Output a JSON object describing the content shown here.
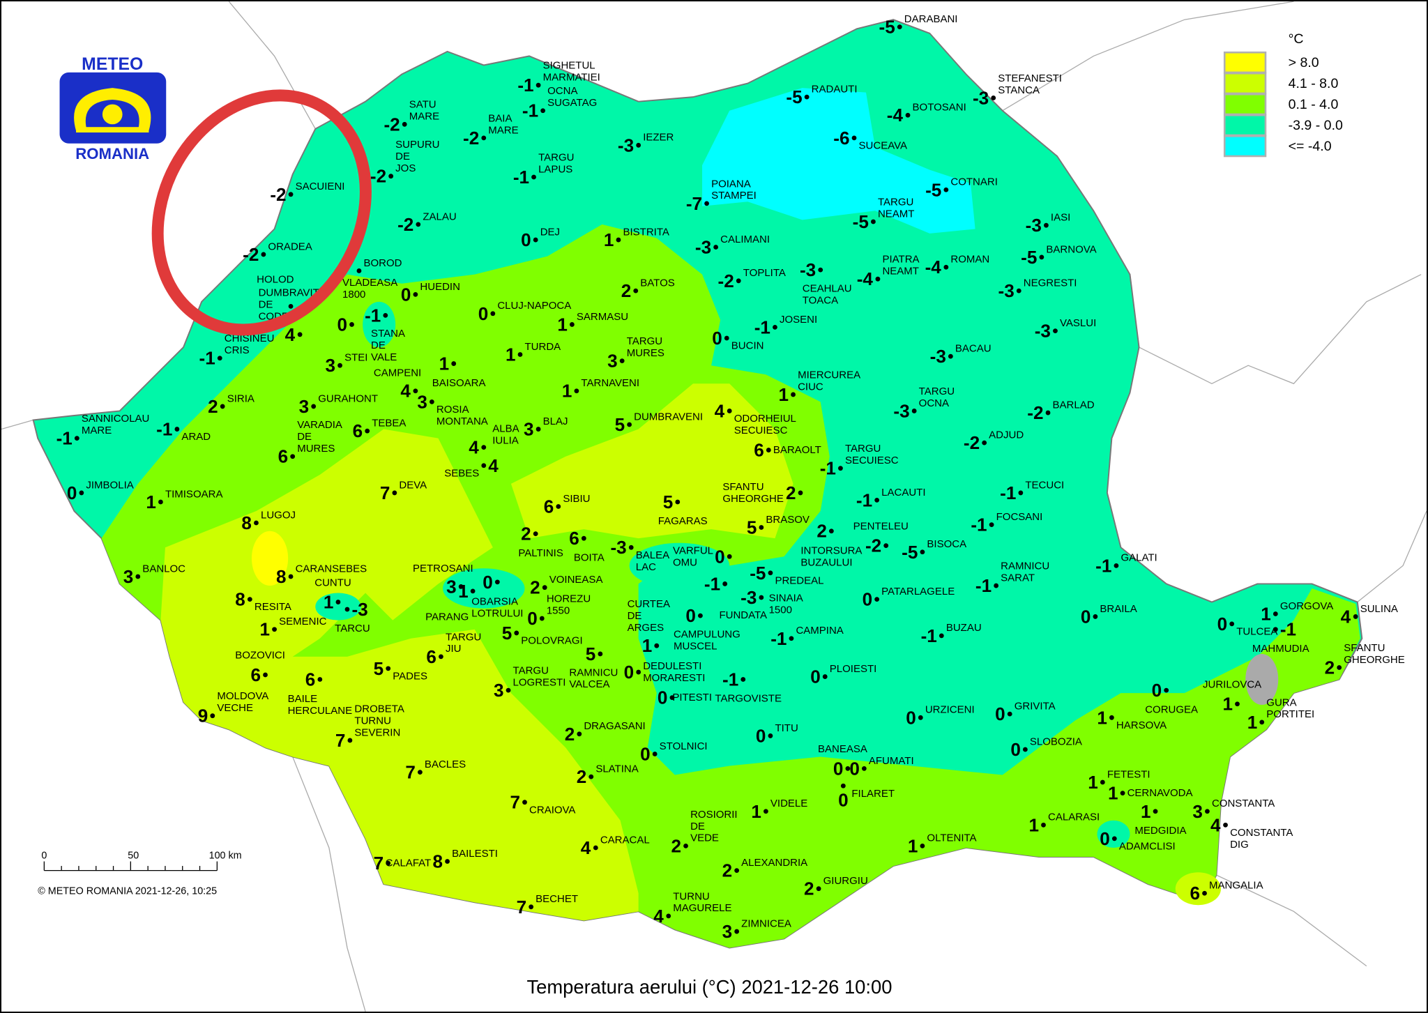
{
  "logo": {
    "top": "METEO",
    "bottom": "ROMANIA"
  },
  "title": "Temperatura aerului (°C) 2021-12-26 10:00",
  "copyright": "© METEO ROMANIA 2021-12-26, 10:25",
  "scale_bar": {
    "ticks": [
      "0",
      "50",
      "100 km"
    ]
  },
  "legend": {
    "unit": "°C",
    "classes": [
      {
        "label": "> 8.0",
        "color": "#ffff00"
      },
      {
        "label": "4.1 - 8.0",
        "color": "#ccff00"
      },
      {
        "label": "0.1 - 4.0",
        "color": "#80ff00"
      },
      {
        "label": "-3.9 - 0.0",
        "color": "#00f7a8"
      },
      {
        "label": "<= -4.0",
        "color": "#00ffff"
      }
    ]
  },
  "annotation": {
    "type": "red-circle",
    "color": "#e03a3a"
  },
  "stations": [
    {
      "name": "DARABANI",
      "value": "-5"
    },
    {
      "name": "RADAUTI",
      "value": "-5"
    },
    {
      "name": "BOTOSANI",
      "value": "-4"
    },
    {
      "name": "STEFANESTI\nSTANCA",
      "value": "-3"
    },
    {
      "name": "SUCEAVA",
      "value": "-6"
    },
    {
      "name": "COTNARI",
      "value": "-5"
    },
    {
      "name": "IASI",
      "value": "-3"
    },
    {
      "name": "BARNOVA",
      "value": "-5"
    },
    {
      "name": "POIANA\nSTAMPEI",
      "value": "-7"
    },
    {
      "name": "TARGU\nNEAMT",
      "value": "-5"
    },
    {
      "name": "PIATRA\nNEAMT",
      "value": "-4"
    },
    {
      "name": "ROMAN",
      "value": "-4"
    },
    {
      "name": "NEGRESTI",
      "value": "-3"
    },
    {
      "name": "VASLUI",
      "value": "-3"
    },
    {
      "name": "CALIMANI",
      "value": "-3"
    },
    {
      "name": "TOPLITA",
      "value": "-2"
    },
    {
      "name": "CEAHLAU\nTOACA",
      "value": "-3"
    },
    {
      "name": "BACAU",
      "value": "-3"
    },
    {
      "name": "TARGU\nOCNA",
      "value": "-3"
    },
    {
      "name": "BARLAD",
      "value": "-2"
    },
    {
      "name": "ADJUD",
      "value": "-2"
    },
    {
      "name": "JOSENI",
      "value": "-1"
    },
    {
      "name": "BUCIN",
      "value": "0"
    },
    {
      "name": "MIERCUREA\nCIUC",
      "value": "1"
    },
    {
      "name": "ODORHEIUL\nSECUIESC",
      "value": "4"
    },
    {
      "name": "BARAOLT",
      "value": "6"
    },
    {
      "name": "TARGU\nSECUIESC",
      "value": "-1"
    },
    {
      "name": "SFANTU\nGHEORGHE",
      "value": "2"
    },
    {
      "name": "LACAUTI",
      "value": "-1"
    },
    {
      "name": "TECUCI",
      "value": "-1"
    },
    {
      "name": "FOCSANI",
      "value": "-1"
    },
    {
      "name": "INTORSURA\nBUZAULUI",
      "value": "2"
    },
    {
      "name": "PENTELEU",
      "value": "-2"
    },
    {
      "name": "BISOCA",
      "value": "-5"
    },
    {
      "name": "RAMNICU\nSARAT",
      "value": "-1"
    },
    {
      "name": "GALATI",
      "value": "-1"
    },
    {
      "name": "BRASOV",
      "value": "5"
    },
    {
      "name": "FAGARAS",
      "value": "5"
    },
    {
      "name": "VARFUL\nOMU",
      "value": "0"
    },
    {
      "name": "PREDEAL",
      "value": "-5"
    },
    {
      "name": "FUNDATA",
      "value": "-1"
    },
    {
      "name": "SINAIA\n1500",
      "value": "-3"
    },
    {
      "name": "PATARLAGELE",
      "value": "0"
    },
    {
      "name": "BUZAU",
      "value": "-1"
    },
    {
      "name": "BRAILA",
      "value": "0"
    },
    {
      "name": "TULCEA",
      "value": "0"
    },
    {
      "name": "GORGOVA",
      "value": "1"
    },
    {
      "name": "SULINA",
      "value": "4"
    },
    {
      "name": "MAHMUDIA",
      "value": "-1"
    },
    {
      "name": "SFANTU\nGHEORGHE",
      "value": "2"
    },
    {
      "name": "GURA\nPORTITEI",
      "value": "1"
    },
    {
      "name": "JURILOVCA",
      "value": "1"
    },
    {
      "name": "CORUGEA",
      "value": "0"
    },
    {
      "name": "HARSOVA",
      "value": "1"
    },
    {
      "name": "CAMPULUNG\nMUSCEL",
      "value": "0"
    },
    {
      "name": "CURTEA\nDE\nARGES",
      "value": "1"
    },
    {
      "name": "CAMPINA",
      "value": "-1"
    },
    {
      "name": "PLOIESTI",
      "value": "0"
    },
    {
      "name": "TARGOVISTE",
      "value": "-1"
    },
    {
      "name": "PITESTI",
      "value": "0"
    },
    {
      "name": "URZICENI",
      "value": "0"
    },
    {
      "name": "GRIVITA",
      "value": "0"
    },
    {
      "name": "SLOBOZIA",
      "value": "0"
    },
    {
      "name": "TITU",
      "value": "0"
    },
    {
      "name": "STOLNICI",
      "value": "0"
    },
    {
      "name": "BANEASA",
      "value": "0"
    },
    {
      "name": "AFUMATI",
      "value": "0"
    },
    {
      "name": "FILARET",
      "value": "0"
    },
    {
      "name": "FETESTI",
      "value": "1"
    },
    {
      "name": "CERNAVODA",
      "value": "1"
    },
    {
      "name": "MEDGIDIA",
      "value": "1"
    },
    {
      "name": "CONSTANTA",
      "value": "3"
    },
    {
      "name": "CONSTANTA\nDIG",
      "value": "4"
    },
    {
      "name": "CALARASI",
      "value": "1"
    },
    {
      "name": "ADAMCLISI",
      "value": "0"
    },
    {
      "name": "OLTENITA",
      "value": "1"
    },
    {
      "name": "MANGALIA",
      "value": "6"
    },
    {
      "name": "GIURGIU",
      "value": "2"
    },
    {
      "name": "ZIMNICEA",
      "value": "3"
    },
    {
      "name": "TURNU\nMAGURELE",
      "value": "4"
    },
    {
      "name": "ALEXANDRIA",
      "value": "2"
    },
    {
      "name": "ROSIORII\nDE\nVEDE",
      "value": "2"
    },
    {
      "name": "VIDELE",
      "value": "1"
    },
    {
      "name": "CARACAL",
      "value": "4"
    },
    {
      "name": "BECHET",
      "value": "7"
    },
    {
      "name": "CRAIOVA",
      "value": "7"
    },
    {
      "name": "SLATINA",
      "value": "2"
    },
    {
      "name": "DRAGASANI",
      "value": "2"
    },
    {
      "name": "BAILESTI",
      "value": "8"
    },
    {
      "name": "CALAFAT",
      "value": "7"
    },
    {
      "name": "BACLES",
      "value": "7"
    },
    {
      "name": "DROBETA\nTURNU\nSEVERIN",
      "value": "7"
    },
    {
      "name": "MOLDOVA\nVECHE",
      "value": "9"
    },
    {
      "name": "BOZOVICI",
      "value": "6"
    },
    {
      "name": "BAILE\nHERCULANE",
      "value": "6"
    },
    {
      "name": "PADES",
      "value": "5"
    },
    {
      "name": "TARGU\nJIU",
      "value": "6"
    },
    {
      "name": "POLOVRAGI",
      "value": "5"
    },
    {
      "name": "TARGU\nLOGRESTI",
      "value": "3"
    },
    {
      "name": "RAMNICU\nVALCEA",
      "value": "5"
    },
    {
      "name": "DEDULESTI\nMORARESTI",
      "value": "0"
    },
    {
      "name": "HOREZU\n1550",
      "value": "0"
    },
    {
      "name": "VOINEASA",
      "value": "2"
    },
    {
      "name": "OBARSIA\nLOTRULUI",
      "value": "0"
    },
    {
      "name": "PETROSANI",
      "value": "3"
    },
    {
      "name": "PARANG",
      "value": "1"
    },
    {
      "name": "CUNTU",
      "value": "1"
    },
    {
      "name": "TARCU",
      "value": "-3"
    },
    {
      "name": "SEMENIC",
      "value": "1"
    },
    {
      "name": "RESITA",
      "value": "8"
    },
    {
      "name": "CARANSEBES",
      "value": "8"
    },
    {
      "name": "LUGOJ",
      "value": "8"
    },
    {
      "name": "BANLOC",
      "value": "3"
    },
    {
      "name": "TIMISOARA",
      "value": "1"
    },
    {
      "name": "JIMBOLIA",
      "value": "0"
    },
    {
      "name": "SANNICOLAU\nMARE",
      "value": "-1"
    },
    {
      "name": "ARAD",
      "value": "-1"
    },
    {
      "name": "SIRIA",
      "value": "2"
    },
    {
      "name": "GURAHONT",
      "value": "3"
    },
    {
      "name": "CHISINEU\nCRIS",
      "value": "-1"
    },
    {
      "name": "VARADIA\nDE\nMURES",
      "value": "6"
    },
    {
      "name": "TEBEA",
      "value": "6"
    },
    {
      "name": "DEVA",
      "value": "7"
    },
    {
      "name": "DUMBRAVITA\nDE\nCODRU",
      "value": "4"
    },
    {
      "name": "STEI",
      "value": "3"
    },
    {
      "name": "STANA\nDE\nVALE",
      "value": "0"
    },
    {
      "name": "VLADEASA\n1800",
      "value": "-1"
    },
    {
      "name": "BOROD",
      "value": ""
    },
    {
      "name": "HOLOD",
      "value": ""
    },
    {
      "name": "HUEDIN",
      "value": "0"
    },
    {
      "name": "ORADEA",
      "value": "-2"
    },
    {
      "name": "SACUIENI",
      "value": "-2"
    },
    {
      "name": "SATU\nMARE",
      "value": "-2"
    },
    {
      "name": "SUPURU\nDE\nJOS",
      "value": "-2"
    },
    {
      "name": "ZALAU",
      "value": "-2"
    },
    {
      "name": "SIGHETUL\nMARMATIEI",
      "value": "-1"
    },
    {
      "name": "BAIA\nMARE",
      "value": "-2"
    },
    {
      "name": "OCNA\nSUGATAG",
      "value": "-1"
    },
    {
      "name": "IEZER",
      "value": "-3"
    },
    {
      "name": "TARGU\nLAPUS",
      "value": "-1"
    },
    {
      "name": "DEJ",
      "value": "0"
    },
    {
      "name": "BISTRITA",
      "value": "1"
    },
    {
      "name": "CLUJ-NAPOCA",
      "value": "0"
    },
    {
      "name": "BATOS",
      "value": "2"
    },
    {
      "name": "SARMASU",
      "value": "1"
    },
    {
      "name": "TURDA",
      "value": "1"
    },
    {
      "name": "TARGU\nMURES",
      "value": "3"
    },
    {
      "name": "BAISOARA",
      "value": "1"
    },
    {
      "name": "CAMPENI",
      "value": "4"
    },
    {
      "name": "ROSIA\nMONTANA",
      "value": "3"
    },
    {
      "name": "TARNAVENI",
      "value": "1"
    },
    {
      "name": "DUMBRAVENI",
      "value": "5"
    },
    {
      "name": "BLAJ",
      "value": "3"
    },
    {
      "name": "ALBA\nIULIA",
      "value": "4"
    },
    {
      "name": "SEBES",
      "value": "4"
    },
    {
      "name": "SIBIU",
      "value": "6"
    },
    {
      "name": "PALTINIS",
      "value": "2"
    },
    {
      "name": "BOITA",
      "value": "6"
    },
    {
      "name": "BALEA\nLAC",
      "value": "-3"
    }
  ]
}
